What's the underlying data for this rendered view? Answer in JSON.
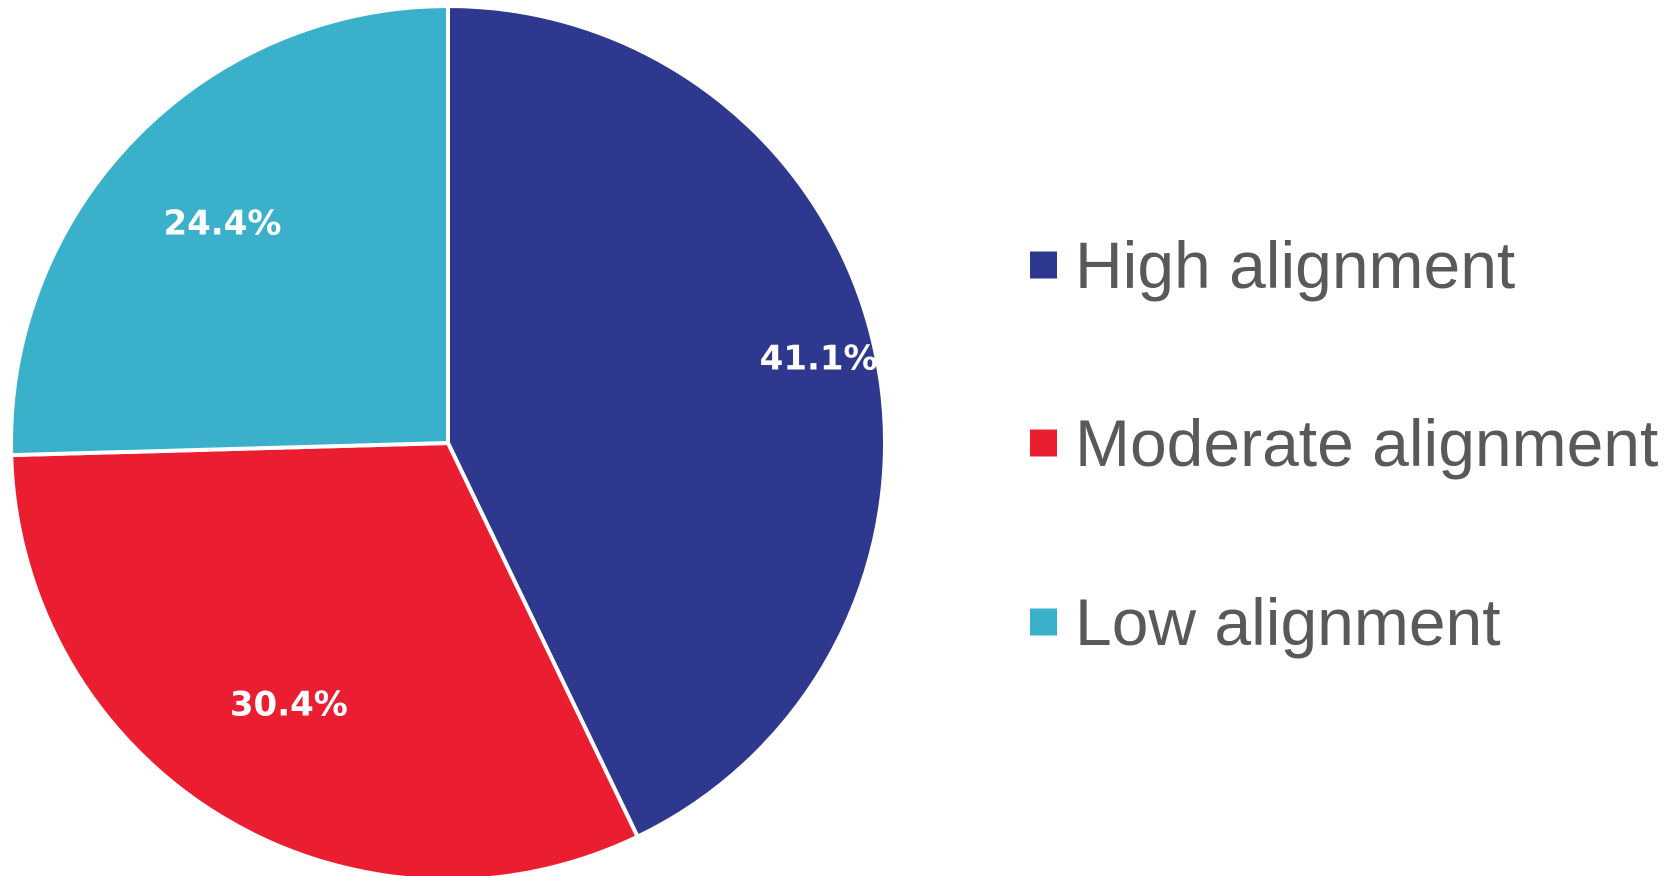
{
  "chart_data": {
    "type": "pie",
    "start_angle_deg": 0,
    "direction": "clockwise",
    "slice_border_color": "#ffffff",
    "slices": [
      {
        "name": "High alignment",
        "value": 41.1,
        "label": "41.1%",
        "color": "#2E388E"
      },
      {
        "name": "Moderate alignment",
        "value": 30.4,
        "label": "30.4%",
        "color": "#EB1E31"
      },
      {
        "name": "Low alignment",
        "value": 24.4,
        "label": "24.4%",
        "color": "#3BB0CB"
      }
    ],
    "legend": {
      "position": "right",
      "entries": [
        "High alignment",
        "Moderate alignment",
        "Low alignment"
      ]
    }
  }
}
